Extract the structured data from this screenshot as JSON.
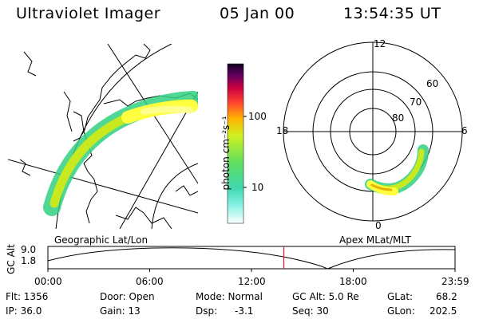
{
  "header": {
    "title": "Ultraviolet Imager",
    "date": "05 Jan 00",
    "time": "13:54:35 UT"
  },
  "colorbar": {
    "label": "photon cm⁻²s⁻¹",
    "ticks": [
      "100",
      "10"
    ]
  },
  "geo_panel": {
    "caption": "Geographic Lat/Lon"
  },
  "polar_panel": {
    "caption": "Apex MLat/MLT",
    "mlt_labels": [
      "12",
      "18",
      "6",
      "0"
    ],
    "mlat_labels": [
      "60",
      "70",
      "80"
    ]
  },
  "timeline": {
    "ylabel": "GC Alt",
    "ymax": "9.0",
    "ymin": "1.8",
    "ticks": [
      "00:00",
      "06:00",
      "12:00",
      "18:00",
      "23:59"
    ],
    "marker_fraction": 0.5795
  },
  "info": {
    "flt": "Flt: 1356",
    "ip": "IP: 36.0",
    "door": "Door: Open",
    "gain": "Gain: 13",
    "mode": "Mode: Normal",
    "dsp": "Dsp:",
    "dsp_val": "-3.1",
    "gcalt": "GC Alt: 5.0 Re",
    "seq": "Seq: 30",
    "glat": "GLat:",
    "glat_val": "68.2",
    "glon": "GLon:",
    "glon_val": "202.5"
  },
  "colors": {
    "marker": "#e02020",
    "aurora_low": "#30d080",
    "aurora_mid": "#c8e820",
    "aurora_high": "#ffff40"
  }
}
